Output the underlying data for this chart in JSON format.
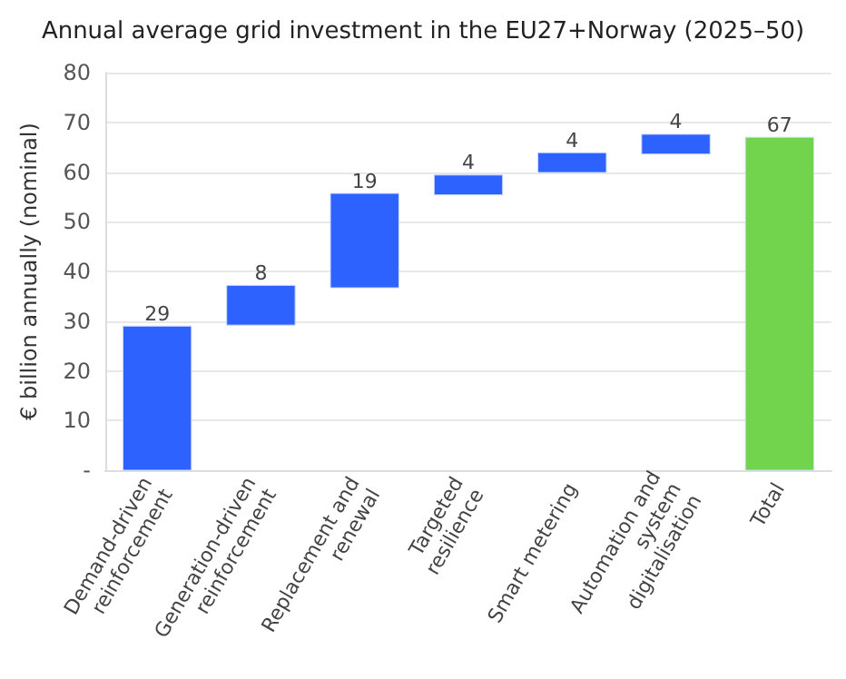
{
  "chart_data": {
    "type": "bar",
    "title": "Annual average grid investment in the EU27+Norway (2025–50)",
    "ylabel": "€ billion annually (nominal)",
    "categories": [
      "Demand-driven\nreinforcement",
      "Generation-driven\nreinforcement",
      "Replacement and\nrenewal",
      "Targeted\nresilience",
      "Smart metering",
      "Automation and\nsystem\ndigitalisation",
      "Total"
    ],
    "values": [
      29,
      8,
      19,
      4,
      4,
      4,
      67
    ],
    "base": [
      0,
      29.2,
      36.7,
      55.4,
      59.9,
      63.6,
      0
    ],
    "colors": [
      "#2e62ff",
      "#2e62ff",
      "#2e62ff",
      "#2e62ff",
      "#2e62ff",
      "#2e62ff",
      "#72d44c"
    ],
    "ylim": [
      0,
      80
    ],
    "yticks": [
      {
        "value": 0,
        "label": "-"
      },
      10,
      20,
      30,
      40,
      50,
      60,
      70,
      80
    ],
    "grid": "y",
    "data_labels": true
  }
}
